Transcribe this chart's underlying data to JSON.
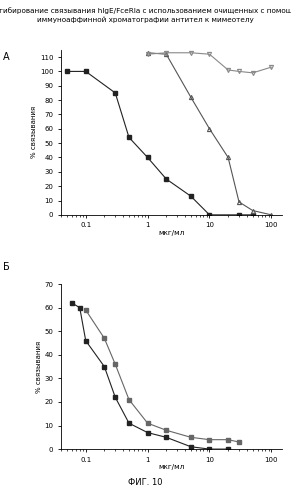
{
  "title_line1": "Ингибирование связывания hIgE/FceRIa с использованием очищенных с помощью",
  "title_line2": "иммуноаффинной хроматографии антител к мимеотелу",
  "panel_A_label": "А",
  "panel_B_label": "Б",
  "ylabel": "% связывания",
  "xlabel": "мкг/мл",
  "fig_label": "ФИГ. 10",
  "panel_A": {
    "ylim": [
      0,
      115
    ],
    "yticks": [
      0,
      10,
      20,
      30,
      40,
      50,
      60,
      70,
      80,
      90,
      100,
      110
    ],
    "xlim": [
      0.04,
      150
    ],
    "series1": {
      "x": [
        0.05,
        0.1,
        0.3,
        0.5,
        1.0,
        2.0,
        5.0,
        10.0,
        30.0,
        50.0
      ],
      "y": [
        100,
        100,
        85,
        54,
        40,
        25,
        13,
        0,
        0,
        0
      ],
      "marker": "s",
      "color": "#222222",
      "linestyle": "-"
    },
    "series2": {
      "x": [
        1.0,
        2.0,
        5.0,
        10.0,
        20.0,
        30.0,
        50.0,
        100.0
      ],
      "y": [
        113,
        112,
        82,
        60,
        40,
        9,
        3,
        0
      ],
      "marker": "^",
      "color": "#555555",
      "linestyle": "-"
    },
    "series3": {
      "x": [
        1.0,
        2.0,
        5.0,
        10.0,
        20.0,
        30.0,
        50.0,
        100.0
      ],
      "y": [
        112,
        113,
        113,
        112,
        101,
        100,
        99,
        103
      ],
      "marker": "v",
      "color": "#888888",
      "linestyle": "-"
    }
  },
  "panel_B": {
    "ylim": [
      0,
      70
    ],
    "yticks": [
      0,
      10,
      20,
      30,
      40,
      50,
      60,
      70
    ],
    "xlim": [
      0.04,
      150
    ],
    "series1": {
      "x": [
        0.06,
        0.08,
        0.1,
        0.2,
        0.3,
        0.5,
        1.0,
        2.0,
        5.0,
        10.0,
        20.0
      ],
      "y": [
        62,
        60,
        46,
        35,
        22,
        11,
        7,
        5,
        1,
        0,
        0
      ],
      "marker": "s",
      "color": "#222222",
      "linestyle": "-"
    },
    "series2": {
      "x": [
        0.1,
        0.2,
        0.3,
        0.5,
        1.0,
        2.0,
        5.0,
        10.0,
        20.0,
        30.0
      ],
      "y": [
        59,
        47,
        36,
        21,
        11,
        8,
        5,
        4,
        4,
        3
      ],
      "marker": "s",
      "color": "#666666",
      "linestyle": "-"
    }
  }
}
